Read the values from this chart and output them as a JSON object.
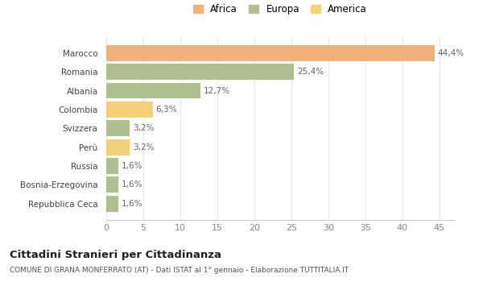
{
  "categories": [
    "Repubblica Ceca",
    "Bosnia-Erzegovina",
    "Russia",
    "Perù",
    "Svizzera",
    "Colombia",
    "Albania",
    "Romania",
    "Marocco"
  ],
  "values": [
    1.6,
    1.6,
    1.6,
    3.2,
    3.2,
    6.3,
    12.7,
    25.4,
    44.4
  ],
  "labels": [
    "1,6%",
    "1,6%",
    "1,6%",
    "3,2%",
    "3,2%",
    "6,3%",
    "12,7%",
    "25,4%",
    "44,4%"
  ],
  "colors": [
    "#afc090",
    "#afc090",
    "#afc090",
    "#f5d07a",
    "#afc090",
    "#f5d07a",
    "#afc090",
    "#afc090",
    "#f0b07a"
  ],
  "legend": [
    {
      "label": "Africa",
      "color": "#f0b07a"
    },
    {
      "label": "Europa",
      "color": "#afc090"
    },
    {
      "label": "America",
      "color": "#f5d07a"
    }
  ],
  "title1": "Cittadini Stranieri per Cittadinanza",
  "title2": "COMUNE DI GRANA MONFERRATO (AT) - Dati ISTAT al 1° gennaio - Elaborazione TUTTITALIA.IT",
  "xlim": [
    0,
    47
  ],
  "xticks": [
    0,
    5,
    10,
    15,
    20,
    25,
    30,
    35,
    40,
    45
  ],
  "background_color": "#ffffff",
  "grid_color": "#e8e8e8"
}
